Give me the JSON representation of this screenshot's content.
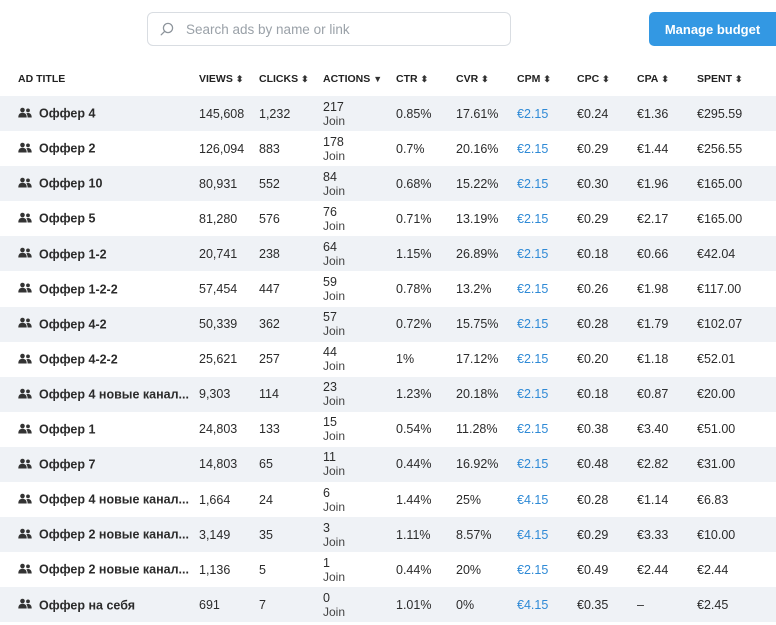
{
  "search": {
    "placeholder": "Search ads by name or link"
  },
  "header_actions": {
    "budget_label": "Manage budget"
  },
  "table": {
    "columns": [
      "AD TITLE",
      "VIEWS",
      "CLICKS",
      "ACTIONS",
      "CTR",
      "CVR",
      "CPM",
      "CPC",
      "CPA",
      "SPENT"
    ],
    "sort_glyphs": {
      "views": "⬍",
      "clicks": "⬍",
      "actions": "▼",
      "ctr": "⬍",
      "cvr": "⬍",
      "cpm": "⬍",
      "cpc": "⬍",
      "cpa": "⬍",
      "spent": "⬍"
    },
    "rows": [
      {
        "title": "Оффер 4",
        "views": "145,608",
        "clicks": "1,232",
        "actions": "217",
        "action_label": "Join",
        "ctr": "0.85%",
        "cvr": "17.61%",
        "cpm": "€2.15",
        "cpc": "€0.24",
        "cpa": "€1.36",
        "spent": "€295.59"
      },
      {
        "title": "Оффер 2",
        "views": "126,094",
        "clicks": "883",
        "actions": "178",
        "action_label": "Join",
        "ctr": "0.7%",
        "cvr": "20.16%",
        "cpm": "€2.15",
        "cpc": "€0.29",
        "cpa": "€1.44",
        "spent": "€256.55"
      },
      {
        "title": "Оффер 10",
        "views": "80,931",
        "clicks": "552",
        "actions": "84",
        "action_label": "Join",
        "ctr": "0.68%",
        "cvr": "15.22%",
        "cpm": "€2.15",
        "cpc": "€0.30",
        "cpa": "€1.96",
        "spent": "€165.00"
      },
      {
        "title": "Оффер 5",
        "views": "81,280",
        "clicks": "576",
        "actions": "76",
        "action_label": "Join",
        "ctr": "0.71%",
        "cvr": "13.19%",
        "cpm": "€2.15",
        "cpc": "€0.29",
        "cpa": "€2.17",
        "spent": "€165.00"
      },
      {
        "title": "Оффер 1-2",
        "views": "20,741",
        "clicks": "238",
        "actions": "64",
        "action_label": "Join",
        "ctr": "1.15%",
        "cvr": "26.89%",
        "cpm": "€2.15",
        "cpc": "€0.18",
        "cpa": "€0.66",
        "spent": "€42.04"
      },
      {
        "title": "Оффер 1-2-2",
        "views": "57,454",
        "clicks": "447",
        "actions": "59",
        "action_label": "Join",
        "ctr": "0.78%",
        "cvr": "13.2%",
        "cpm": "€2.15",
        "cpc": "€0.26",
        "cpa": "€1.98",
        "spent": "€117.00"
      },
      {
        "title": "Оффер 4-2",
        "views": "50,339",
        "clicks": "362",
        "actions": "57",
        "action_label": "Join",
        "ctr": "0.72%",
        "cvr": "15.75%",
        "cpm": "€2.15",
        "cpc": "€0.28",
        "cpa": "€1.79",
        "spent": "€102.07"
      },
      {
        "title": "Оффер 4-2-2",
        "views": "25,621",
        "clicks": "257",
        "actions": "44",
        "action_label": "Join",
        "ctr": "1%",
        "cvr": "17.12%",
        "cpm": "€2.15",
        "cpc": "€0.20",
        "cpa": "€1.18",
        "spent": "€52.01"
      },
      {
        "title": "Оффер 4 новые канал...",
        "views": "9,303",
        "clicks": "114",
        "actions": "23",
        "action_label": "Join",
        "ctr": "1.23%",
        "cvr": "20.18%",
        "cpm": "€2.15",
        "cpc": "€0.18",
        "cpa": "€0.87",
        "spent": "€20.00"
      },
      {
        "title": "Оффер 1",
        "views": "24,803",
        "clicks": "133",
        "actions": "15",
        "action_label": "Join",
        "ctr": "0.54%",
        "cvr": "11.28%",
        "cpm": "€2.15",
        "cpc": "€0.38",
        "cpa": "€3.40",
        "spent": "€51.00"
      },
      {
        "title": "Оффер 7",
        "views": "14,803",
        "clicks": "65",
        "actions": "11",
        "action_label": "Join",
        "ctr": "0.44%",
        "cvr": "16.92%",
        "cpm": "€2.15",
        "cpc": "€0.48",
        "cpa": "€2.82",
        "spent": "€31.00"
      },
      {
        "title": "Оффер 4 новые канал...",
        "views": "1,664",
        "clicks": "24",
        "actions": "6",
        "action_label": "Join",
        "ctr": "1.44%",
        "cvr": "25%",
        "cpm": "€4.15",
        "cpc": "€0.28",
        "cpa": "€1.14",
        "spent": "€6.83"
      },
      {
        "title": "Оффер 2 новые канал...",
        "views": "3,149",
        "clicks": "35",
        "actions": "3",
        "action_label": "Join",
        "ctr": "1.11%",
        "cvr": "8.57%",
        "cpm": "€4.15",
        "cpc": "€0.29",
        "cpa": "€3.33",
        "spent": "€10.00"
      },
      {
        "title": "Оффер 2 новые канал...",
        "views": "1,136",
        "clicks": "5",
        "actions": "1",
        "action_label": "Join",
        "ctr": "0.44%",
        "cvr": "20%",
        "cpm": "€2.15",
        "cpc": "€0.49",
        "cpa": "€2.44",
        "spent": "€2.44"
      },
      {
        "title": "Оффер на себя",
        "views": "691",
        "clicks": "7",
        "actions": "0",
        "action_label": "Join",
        "ctr": "1.01%",
        "cvr": "0%",
        "cpm": "€4.15",
        "cpc": "€0.35",
        "cpa": "–",
        "spent": "€2.45"
      }
    ]
  },
  "colors": {
    "accent": "#3398e3",
    "cpm_text": "#2f8ad6",
    "row_stripe": "#eff2f6"
  }
}
